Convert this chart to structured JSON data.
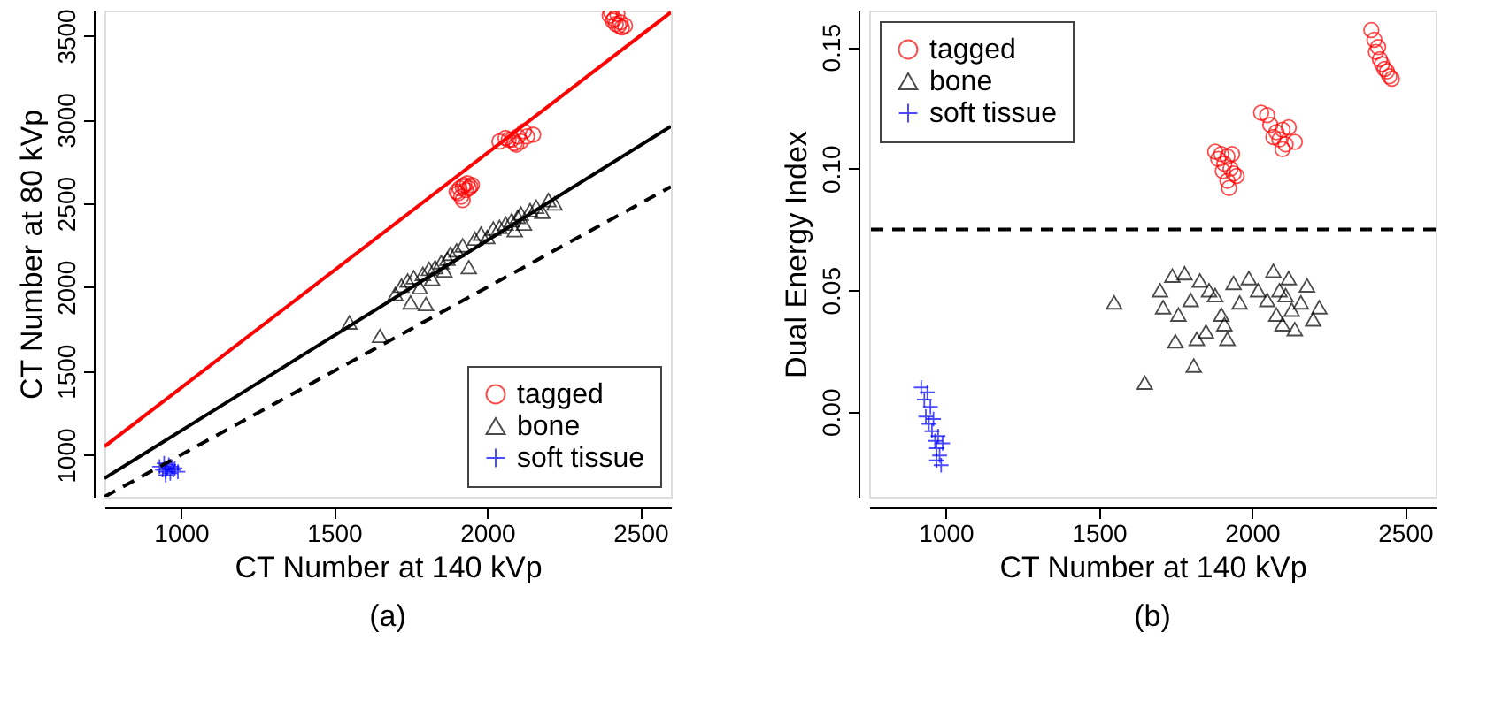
{
  "chart_data": [
    {
      "type": "scatter",
      "xlabel": "CT Number at 140 kVp",
      "ylabel": "CT Number at 80 kVp",
      "annotations": [
        "(a)"
      ],
      "xlim": [
        750,
        2600
      ],
      "ylim": [
        750,
        3650
      ],
      "xticks": [
        1000,
        1500,
        2000,
        2500
      ],
      "yticks": [
        1000,
        1500,
        2000,
        2500,
        3000,
        3500
      ],
      "grid": false,
      "legend": "bottom right",
      "series": [
        {
          "name": "tagged",
          "color": "#ff0000",
          "marker": "circle",
          "x": [
            1900,
            1910,
            1915,
            1920,
            1925,
            1930,
            1935,
            1940,
            1945,
            1920,
            1905,
            1950,
            2040,
            2060,
            2080,
            2090,
            2100,
            2110,
            2120,
            2130,
            2095,
            2150,
            2070,
            2400,
            2410,
            2420,
            2430,
            2415,
            2440,
            2450,
            2425,
            2405,
            2435
          ],
          "values": [
            2570,
            2590,
            2540,
            2600,
            2610,
            2580,
            2620,
            2590,
            2600,
            2520,
            2560,
            2610,
            2870,
            2890,
            2880,
            2860,
            2900,
            2870,
            2930,
            2900,
            2850,
            2910,
            2880,
            3620,
            3590,
            3570,
            3560,
            3600,
            3550,
            3560,
            3630,
            3640,
            3580
          ]
        },
        {
          "name": "bone",
          "color": "#000000",
          "marker": "triangle",
          "x": [
            1550,
            1650,
            1700,
            1720,
            1740,
            1750,
            1760,
            1780,
            1790,
            1800,
            1810,
            1820,
            1830,
            1850,
            1860,
            1870,
            1880,
            1900,
            1920,
            1940,
            1960,
            1980,
            2000,
            2020,
            2040,
            2060,
            2080,
            2090,
            2100,
            2110,
            2120,
            2140,
            2160,
            2180,
            2200,
            2220
          ],
          "values": [
            1790,
            1710,
            1960,
            2010,
            2040,
            1910,
            2060,
            2000,
            2080,
            1900,
            2110,
            2050,
            2120,
            2150,
            2100,
            2170,
            2200,
            2220,
            2250,
            2120,
            2290,
            2320,
            2300,
            2350,
            2360,
            2380,
            2400,
            2340,
            2420,
            2440,
            2380,
            2460,
            2480,
            2450,
            2520,
            2500
          ]
        },
        {
          "name": "soft tissue",
          "color": "#0000ff",
          "marker": "cross",
          "x": [
            930,
            940,
            945,
            950,
            955,
            960,
            965,
            970,
            975,
            980,
            990,
            950
          ],
          "values": [
            930,
            910,
            950,
            900,
            920,
            940,
            890,
            930,
            910,
            920,
            900,
            880
          ]
        },
        {
          "type": "line",
          "color": "#ff0000",
          "line_style": "solid",
          "x": [
            750,
            2600
          ],
          "values": [
            1050,
            3640
          ]
        },
        {
          "type": "line",
          "color": "#000000",
          "line_style": "solid",
          "x": [
            750,
            2600
          ],
          "values": [
            860,
            2960
          ]
        },
        {
          "type": "line",
          "color": "#000000",
          "line_style": "dashed",
          "x": [
            750,
            2600
          ],
          "values": [
            750,
            2600
          ]
        }
      ]
    },
    {
      "type": "scatter",
      "xlabel": "CT Number at 140 kVp",
      "ylabel": "Dual Energy Index",
      "annotations": [
        "(b)"
      ],
      "xlim": [
        750,
        2600
      ],
      "ylim": [
        -0.035,
        0.165
      ],
      "xticks": [
        1000,
        1500,
        2000,
        2500
      ],
      "yticks": [
        {
          "value": 0,
          "label": "0.00"
        },
        0.05,
        {
          "value": 0.1,
          "label": "0.10"
        },
        0.15
      ],
      "grid": false,
      "legend": "top left",
      "ref_lines": [
        {
          "axis": "y",
          "value": 0.075,
          "color": "#000000",
          "line_style": "dashed"
        }
      ],
      "series": [
        {
          "name": "tagged",
          "color": "#ff0000",
          "marker": "circle",
          "x": [
            1880,
            1890,
            1900,
            1910,
            1920,
            1920,
            1930,
            1940,
            1950,
            1925,
            1905,
            1935,
            2030,
            2050,
            2060,
            2080,
            2090,
            2100,
            2110,
            2120,
            2100,
            2140,
            2070,
            2390,
            2400,
            2405,
            2412,
            2418,
            2425,
            2433,
            2441,
            2449,
            2457
          ],
          "values": [
            0.107,
            0.104,
            0.106,
            0.102,
            0.105,
            0.095,
            0.1,
            0.098,
            0.097,
            0.092,
            0.099,
            0.106,
            0.123,
            0.122,
            0.118,
            0.115,
            0.112,
            0.116,
            0.11,
            0.117,
            0.108,
            0.111,
            0.113,
            0.157,
            0.153,
            0.148,
            0.15,
            0.145,
            0.143,
            0.141,
            0.14,
            0.138,
            0.137
          ]
        },
        {
          "name": "bone",
          "color": "#000000",
          "marker": "triangle",
          "x": [
            1550,
            1650,
            1700,
            1710,
            1740,
            1750,
            1760,
            1780,
            1800,
            1810,
            1820,
            1830,
            1850,
            1860,
            1880,
            1900,
            1910,
            1920,
            1940,
            1960,
            1990,
            2020,
            2050,
            2070,
            2080,
            2090,
            2100,
            2110,
            2120,
            2130,
            2140,
            2160,
            2180,
            2200,
            2220
          ],
          "values": [
            0.045,
            0.012,
            0.05,
            0.043,
            0.056,
            0.029,
            0.04,
            0.057,
            0.046,
            0.019,
            0.03,
            0.054,
            0.033,
            0.05,
            0.048,
            0.04,
            0.036,
            0.03,
            0.053,
            0.045,
            0.055,
            0.05,
            0.046,
            0.058,
            0.04,
            0.05,
            0.036,
            0.048,
            0.055,
            0.042,
            0.034,
            0.045,
            0.052,
            0.038,
            0.043
          ]
        },
        {
          "name": "soft tissue",
          "color": "#0000ff",
          "marker": "cross",
          "x": [
            920,
            930,
            935,
            940,
            945,
            950,
            955,
            960,
            965,
            970,
            975,
            980,
            985,
            990,
            970
          ],
          "values": [
            0.01,
            0.005,
            -0.002,
            0.008,
            -0.005,
            0.002,
            -0.008,
            -0.003,
            -0.012,
            -0.015,
            -0.01,
            -0.018,
            -0.022,
            -0.013,
            -0.02
          ]
        }
      ]
    }
  ]
}
